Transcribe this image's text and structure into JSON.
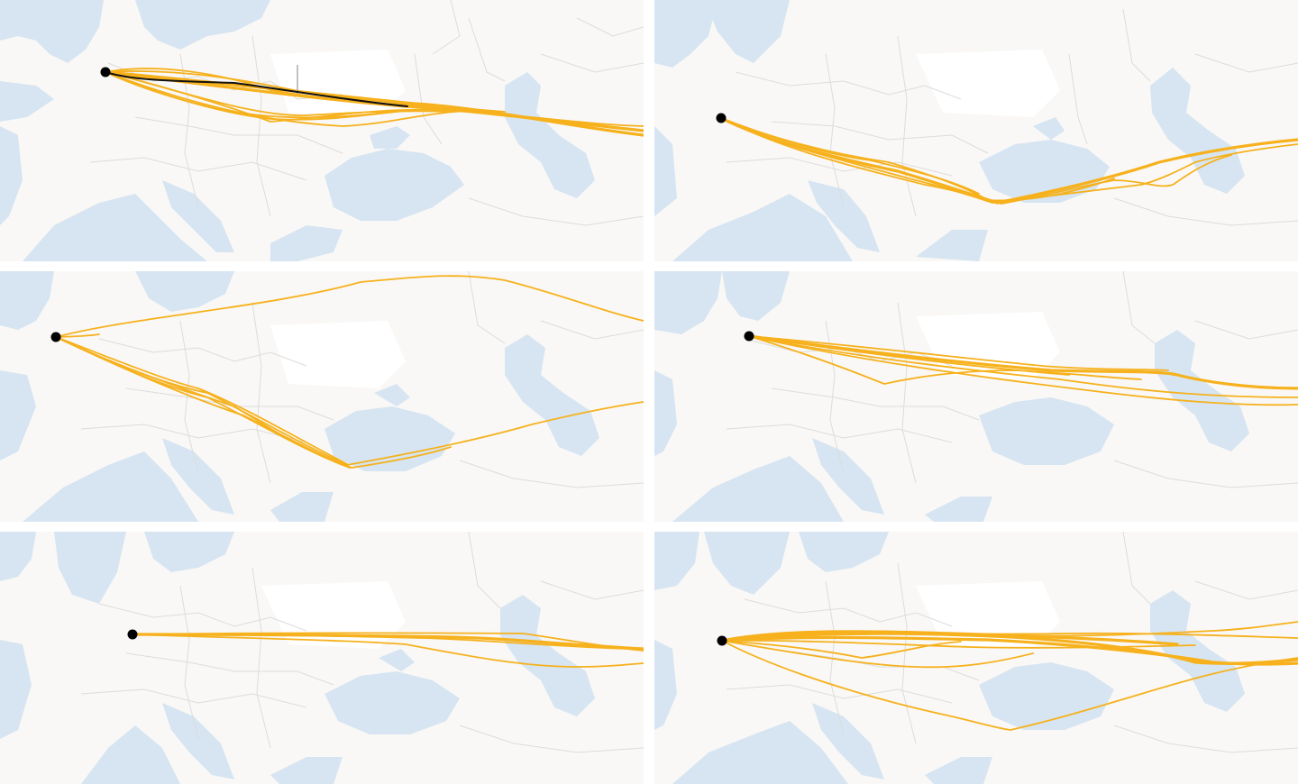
{
  "layout": {
    "rows": 3,
    "columns": 2
  },
  "colors": {
    "land": "#f9f8f6",
    "water": "#d6e5f1",
    "border": "#dcdcdc",
    "route": "#f6b11c",
    "highlight_route": "#111111",
    "origin_marker": "#000000"
  },
  "panels": [
    {
      "id": "panel-1",
      "routes_style": "dense-northern-corridor",
      "has_highlight_route": true
    },
    {
      "id": "panel-2",
      "routes_style": "southern-black-sea-corridor",
      "has_highlight_route": false
    },
    {
      "id": "panel-3",
      "routes_style": "split-north-and-south",
      "has_highlight_route": false
    },
    {
      "id": "panel-4",
      "routes_style": "central-corridor",
      "has_highlight_route": false
    },
    {
      "id": "panel-5",
      "routes_style": "straight-east",
      "has_highlight_route": false
    },
    {
      "id": "panel-6",
      "routes_style": "dense-central-with-southern-loop",
      "has_highlight_route": false
    }
  ]
}
